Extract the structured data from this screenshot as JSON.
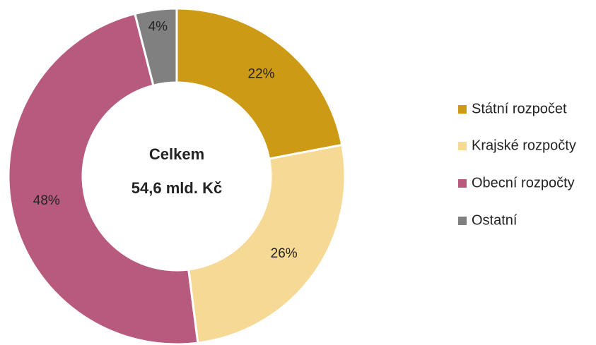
{
  "chart_data": {
    "type": "donut",
    "categories": [
      "Státní rozpočet",
      "Krajské rozpočty",
      "Obecní rozpočty",
      "Ostatní"
    ],
    "values": [
      22,
      26,
      48,
      4
    ],
    "value_labels": [
      "22%",
      "26%",
      "48%",
      "4%"
    ],
    "colors": [
      "#cc9a14",
      "#f6d995",
      "#b85a7e",
      "#808080"
    ],
    "annotations": [
      "Celkem",
      "54,6 mld. Kč"
    ],
    "legend": "right"
  }
}
